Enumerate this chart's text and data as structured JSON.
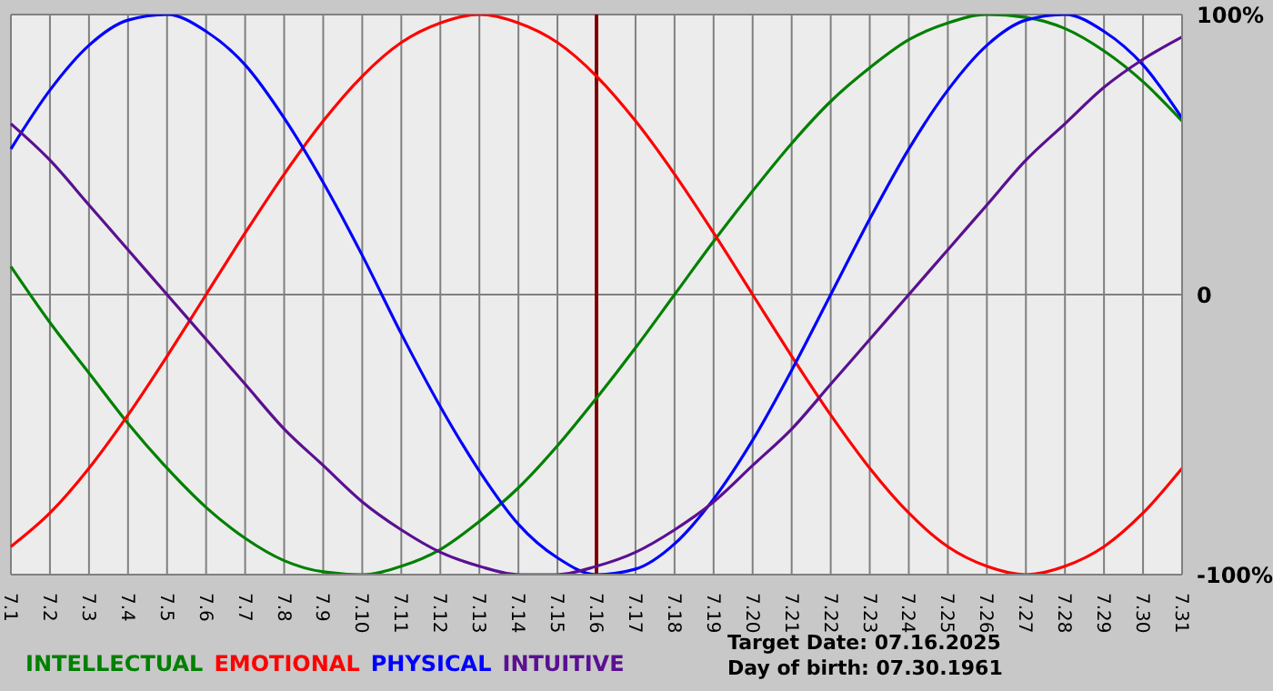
{
  "chart_data": {
    "type": "line",
    "categories": [
      "7.1",
      "7.2",
      "7.3",
      "7.4",
      "7.5",
      "7.6",
      "7.7",
      "7.8",
      "7.9",
      "7.10",
      "7.11",
      "7.12",
      "7.13",
      "7.14",
      "7.15",
      "7.16",
      "7.17",
      "7.18",
      "7.19",
      "7.20",
      "7.21",
      "7.22",
      "7.23",
      "7.24",
      "7.25",
      "7.26",
      "7.27",
      "7.28",
      "7.29",
      "7.30",
      "7.31"
    ],
    "series": [
      {
        "name": "INTELLECTUAL",
        "color": "#008000",
        "values": [
          10,
          -10,
          -28,
          -46,
          -62,
          -76,
          -87,
          -95,
          -99,
          -100,
          -97,
          -91,
          -81,
          -69,
          -54,
          -37,
          -19,
          0,
          19,
          37,
          54,
          69,
          81,
          91,
          97,
          100,
          99,
          95,
          87,
          76,
          62
        ]
      },
      {
        "name": "EMOTIONAL",
        "color": "#ff0000",
        "values": [
          -90,
          -78,
          -62,
          -43,
          -22,
          0,
          22,
          43,
          62,
          78,
          90,
          97,
          100,
          97,
          90,
          78,
          62,
          43,
          22,
          0,
          -22,
          -43,
          -62,
          -78,
          -90,
          -97,
          -100,
          -97,
          -90,
          -78,
          -62
        ]
      },
      {
        "name": "PHYSICAL",
        "color": "#0000ff",
        "values": [
          52,
          73,
          89,
          98,
          100,
          94,
          82,
          63,
          40,
          14,
          -14,
          -40,
          -63,
          -82,
          -94,
          -100,
          -98,
          -89,
          -73,
          -52,
          -27,
          0,
          27,
          52,
          73,
          89,
          98,
          100,
          94,
          82,
          63
        ]
      },
      {
        "name": "INTUITIVE",
        "color": "#5a1090",
        "values": [
          61,
          48,
          32,
          16,
          0,
          -16,
          -32,
          -48,
          -61,
          -74,
          -84,
          -92,
          -97,
          -100,
          -100,
          -97,
          -92,
          -84,
          -74,
          -61,
          -48,
          -32,
          -16,
          0,
          16,
          32,
          48,
          61,
          74,
          84,
          92
        ]
      }
    ],
    "ylim": [
      -100,
      100
    ],
    "yticks": [
      {
        "value": 100,
        "label": "100%"
      },
      0,
      {
        "value": -100,
        "label": "-100%"
      }
    ],
    "grid": true,
    "legend": "bottom left",
    "marker": "none",
    "line_style": "solid",
    "ref_lines": [
      {
        "axis": "x",
        "value": "7.16",
        "color": "#800000"
      }
    ],
    "annotations": [
      "Target Date: 07.16.2025",
      "Day of birth: 07.30.1961"
    ]
  }
}
